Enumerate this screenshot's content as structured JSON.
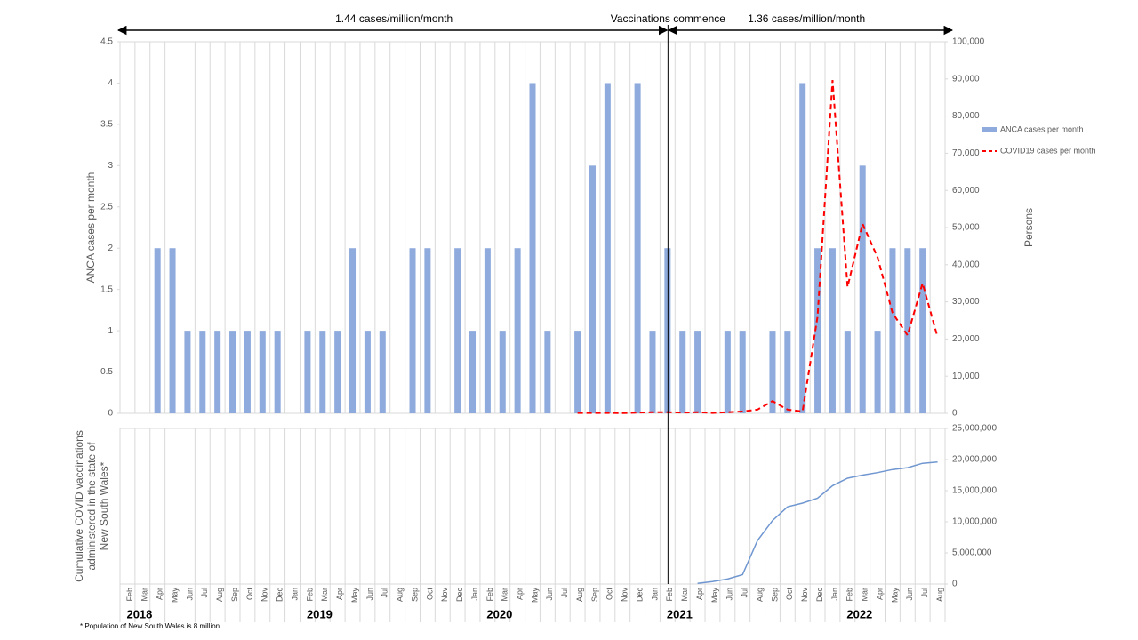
{
  "chart_data": [
    {
      "type": "bar",
      "ylabel": "ANCA cases per month",
      "y2label": "Persons",
      "annotations": [
        "1.44 cases/million/month",
        "Vaccinations commence",
        "1.36 cases/million/month"
      ],
      "ylim": [
        0,
        4.5
      ],
      "yticks": [
        0,
        0.5,
        1,
        1.5,
        2,
        2.5,
        3,
        3.5,
        4,
        4.5
      ],
      "y2lim": [
        0,
        100000
      ],
      "y2ticks": [
        0,
        {
          "value": 10000,
          "label": "10,000"
        },
        {
          "value": 20000,
          "label": "20,000"
        },
        {
          "value": 30000,
          "label": "30,000"
        },
        {
          "value": 40000,
          "label": "40,000"
        },
        {
          "value": 50000,
          "label": "50,000"
        },
        {
          "value": 60000,
          "label": "60,000"
        },
        {
          "value": 70000,
          "label": "70,000"
        },
        {
          "value": 80000,
          "label": "80,000"
        },
        {
          "value": 90000,
          "label": "90,000"
        },
        {
          "value": 100000,
          "label": "100,000"
        }
      ],
      "grid": true,
      "legend": "right",
      "series": [
        {
          "name": "ANCA cases per month",
          "type": "bar",
          "color": "#8faadc",
          "values": [
            0,
            0,
            2,
            2,
            1,
            1,
            1,
            1,
            1,
            1,
            1,
            0,
            1,
            1,
            1,
            2,
            1,
            1,
            0,
            2,
            2,
            0,
            2,
            1,
            2,
            1,
            2,
            4,
            1,
            0,
            1,
            3,
            4,
            0,
            4,
            1,
            2,
            1,
            1,
            0,
            1,
            1,
            0,
            1,
            1,
            4,
            2,
            2,
            1,
            3,
            1,
            2,
            2,
            2,
            0
          ]
        },
        {
          "name": "COVID19 cases per month",
          "type": "line",
          "axis": "y2",
          "color": "#ff0000",
          "values": [
            null,
            null,
            null,
            null,
            null,
            null,
            null,
            null,
            null,
            null,
            null,
            null,
            null,
            null,
            null,
            null,
            null,
            null,
            null,
            null,
            null,
            null,
            null,
            null,
            null,
            null,
            null,
            null,
            null,
            null,
            100,
            100,
            100,
            50,
            200,
            300,
            300,
            200,
            300,
            100,
            300,
            500,
            1000,
            3300,
            1000,
            500,
            26000,
            89700,
            34000,
            51000,
            42000,
            27000,
            21000,
            35000,
            20500
          ]
        }
      ]
    },
    {
      "type": "line",
      "ylabel": [
        "Cumulative COVID vaccinations",
        "administered in the state of",
        "New South Wales*"
      ],
      "categories": [
        "Feb",
        "Mar",
        "Apr",
        "May",
        "Jun",
        "Jul",
        "Aug",
        "Sep",
        "Oct",
        "Nov",
        "Dec",
        "Jan",
        "Feb",
        "Mar",
        "Apr",
        "May",
        "Jun",
        "Jul",
        "Aug",
        "Sep",
        "Oct",
        "Nov",
        "Dec",
        "Jan",
        "Feb",
        "Mar",
        "Apr",
        "May",
        "Jun",
        "Jul",
        "Aug",
        "Sep",
        "Oct",
        "Nov",
        "Dec",
        "Jan",
        "Feb",
        "Mar",
        "Apr",
        "May",
        "Jun",
        "Jul",
        "Aug",
        "Sep",
        "Oct",
        "Nov",
        "Dec",
        "Jan",
        "Feb",
        "Mar",
        "Apr",
        "May",
        "Jun",
        "Jul",
        "Aug"
      ],
      "years": [
        "2018",
        "2019",
        "2020",
        "2021",
        "2022"
      ],
      "y2lim": [
        0,
        25000000
      ],
      "y2ticks": [
        0,
        {
          "value": 5000000,
          "label": "5,000,000"
        },
        {
          "value": 10000000,
          "label": "10,000,000"
        },
        {
          "value": 15000000,
          "label": "15,000,000"
        },
        {
          "value": 20000000,
          "label": "20,000,000"
        },
        {
          "value": 25000000,
          "label": "25,000,000"
        }
      ],
      "grid": true,
      "series": [
        {
          "name": "Cumulative COVID vaccinations",
          "axis": "y2",
          "color": "#6f96d0",
          "values": [
            null,
            null,
            null,
            null,
            null,
            null,
            null,
            null,
            null,
            null,
            null,
            null,
            null,
            null,
            null,
            null,
            null,
            null,
            null,
            null,
            null,
            null,
            null,
            null,
            null,
            null,
            null,
            null,
            null,
            null,
            null,
            null,
            null,
            null,
            null,
            null,
            null,
            null,
            100000,
            400000,
            800000,
            1500000,
            7000000,
            10200000,
            12400000,
            13000000,
            13800000,
            15800000,
            17000000,
            17500000,
            17900000,
            18400000,
            18700000,
            19400000,
            19600000
          ]
        }
      ]
    }
  ],
  "footnote": "* Population of New South Wales is 8 million"
}
